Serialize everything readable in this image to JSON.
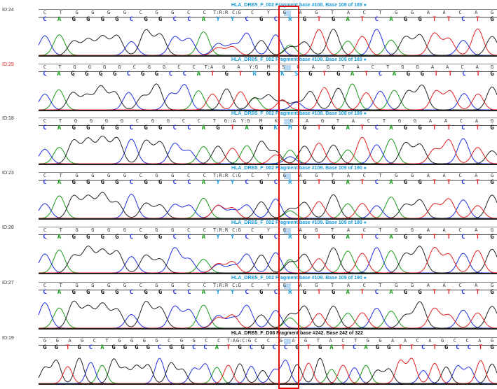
{
  "base_colors": {
    "A": "#1a9a1a",
    "C": "#2030e0",
    "G": "#111111",
    "T": "#e02020",
    "ambiguous": "#20a0e0"
  },
  "highlight_color": "#e01010",
  "tracks": [
    {
      "id": "ID:24",
      "id_color": "#333333",
      "header": "HLA_DRB5_F_002 Fragment base #108. Base 108 of 189 ●",
      "header_color": "#1a9ad8",
      "top": [
        "C",
        "T",
        "G",
        "G",
        "G",
        "G",
        "C",
        "G",
        "G",
        "C",
        "C",
        "T:R:R",
        "C:G",
        "C",
        "Y",
        "G",
        "A",
        "G",
        "T",
        "A",
        "C",
        "T",
        "G",
        "G",
        "A",
        "A",
        "C",
        "A",
        "G"
      ],
      "bottom": [
        "C",
        "A",
        "G",
        "G",
        "G",
        "G",
        "C",
        "G",
        "G",
        "C",
        "C",
        "A",
        "Y",
        "Y",
        "C",
        "G",
        "C",
        "R",
        "G",
        "T",
        "G",
        "A",
        "T",
        "C",
        "A",
        "G",
        "G",
        "T",
        "T",
        "C",
        "T",
        "G"
      ]
    },
    {
      "id": "ID:29",
      "id_color": "#e02020",
      "header": "HLA_DRB5_F_002 Fragment base #109. Base 109 of 183 ●",
      "header_color": "#1a9ad8",
      "top": [
        "C",
        "T",
        "G",
        "G",
        "G",
        "G",
        "C",
        "G",
        "G",
        "C",
        "C",
        "T:A",
        "G",
        "A",
        "Y:G",
        "M",
        "S",
        "G",
        "A",
        "G",
        "T",
        "A",
        "C",
        "T",
        "G",
        "G",
        "A",
        "A",
        "C",
        "A",
        "G"
      ],
      "bottom": [
        "C",
        "A",
        "G",
        "G",
        "G",
        "G",
        "C",
        "G",
        "G",
        "C",
        "C",
        "A",
        "T",
        "G",
        "T",
        "R",
        "G",
        "K",
        "S",
        "G",
        "T",
        "G",
        "A",
        "T",
        "C",
        "A",
        "G",
        "G",
        "T",
        "T",
        "C",
        "T",
        "G"
      ]
    },
    {
      "id": "ID:18",
      "id_color": "#333333",
      "header": "HLA_DRB5_F_002 Fragment base #108. Base 108 of 189 ●",
      "header_color": "#1a9ad8",
      "top": [
        "C",
        "T",
        "G",
        "G",
        "G",
        "G",
        "C",
        "G",
        "G",
        "C",
        "C",
        "T",
        "G::A",
        "Y:G",
        "M",
        "K",
        "G",
        "A",
        "G",
        "T",
        "A",
        "C",
        "T",
        "G",
        "G",
        "A",
        "A",
        "C",
        "A",
        "G"
      ],
      "bottom": [
        "C",
        "A",
        "G",
        "G",
        "G",
        "G",
        "C",
        "G",
        "G",
        "C",
        "C",
        "A",
        "G",
        "T",
        "A",
        "G",
        "K",
        "M",
        "G",
        "T",
        "G",
        "A",
        "T",
        "C",
        "A",
        "G",
        "G",
        "T",
        "T",
        "C",
        "T",
        "G"
      ]
    },
    {
      "id": "ID:23",
      "id_color": "#333333",
      "header": "HLA_DRB5_F_002 Fragment base #109. Base 109 of 190 ●",
      "header_color": "#1a9ad8",
      "top": [
        "C",
        "T",
        "G",
        "G",
        "G",
        "G",
        "C",
        "G",
        "G",
        "C",
        "C",
        "T:R:R",
        "C:G",
        "C",
        "Y",
        "G",
        "A",
        "G",
        "T",
        "A",
        "C",
        "T",
        "G",
        "G",
        "A",
        "A",
        "C",
        "A",
        "G"
      ],
      "bottom": [
        "C",
        "A",
        "G",
        "G",
        "G",
        "G",
        "C",
        "G",
        "G",
        "C",
        "C",
        "A",
        "Y",
        "Y",
        "C",
        "G",
        "C",
        "R",
        "G",
        "T",
        "G",
        "A",
        "T",
        "C",
        "A",
        "G",
        "G",
        "T",
        "T",
        "C",
        "T",
        "G"
      ]
    },
    {
      "id": "ID:28",
      "id_color": "#333333",
      "header": "HLA_DRB5_F_002 Fragment base #109. Base 109 of 190 ●",
      "header_color": "#1a9ad8",
      "top": [
        "C",
        "T",
        "G",
        "G",
        "G",
        "G",
        "C",
        "G",
        "G",
        "C",
        "C",
        "T:R:R",
        "C:G",
        "C",
        "Y",
        "G",
        "A",
        "G",
        "T",
        "A",
        "C",
        "T",
        "G",
        "G",
        "A",
        "A",
        "C",
        "A",
        "G"
      ],
      "bottom": [
        "C",
        "A",
        "G",
        "G",
        "G",
        "G",
        "C",
        "G",
        "G",
        "C",
        "C",
        "A",
        "Y",
        "Y",
        "C",
        "G",
        "C",
        "R",
        "G",
        "T",
        "G",
        "A",
        "T",
        "C",
        "A",
        "G",
        "G",
        "T",
        "T",
        "C",
        "T",
        "G"
      ]
    },
    {
      "id": "ID:27",
      "id_color": "#333333",
      "header": "HLA_DRB5_F_002 Fragment base #109. Base 109 of 190 ●",
      "header_color": "#1a9ad8",
      "top": [
        "C",
        "T",
        "G",
        "G",
        "G",
        "G",
        "C",
        "G",
        "G",
        "C",
        "C",
        "T:R:R",
        "C:G",
        "C",
        "Y",
        "G",
        "A",
        "G",
        "T",
        "A",
        "C",
        "T",
        "G",
        "G",
        "A",
        "A",
        "C",
        "A",
        "G"
      ],
      "bottom": [
        "C",
        "A",
        "G",
        "G",
        "G",
        "G",
        "C",
        "G",
        "G",
        "C",
        "C",
        "A",
        "Y",
        "Y",
        "C",
        "G",
        "C",
        "R",
        "G",
        "T",
        "G",
        "A",
        "T",
        "C",
        "A",
        "G",
        "G",
        "T",
        "T",
        "C",
        "T",
        "G"
      ]
    },
    {
      "id": "ID:19",
      "id_color": "#333333",
      "header": "HLA_DRB5_F_D08 Fragment base #242. Base 242 of 322",
      "header_color": "#111111",
      "top": [
        "G",
        "G",
        "A",
        "G",
        "C",
        "T",
        "G",
        "G",
        "G",
        "G",
        "C",
        "G",
        "G",
        "C",
        "C",
        "T:A",
        "G:C:G",
        "C",
        "C",
        "G",
        "A",
        "G",
        "T",
        "A",
        "C",
        "T",
        "G",
        "G",
        "A",
        "A",
        "C",
        "A",
        "G",
        "C",
        "C",
        "A",
        "G"
      ],
      "bottom": [
        "G",
        "G",
        "T",
        "G",
        "C",
        "A",
        "G",
        "G",
        "G",
        "G",
        "C",
        "G",
        "G",
        "C",
        "C",
        "A",
        "T",
        "G",
        "C",
        "G",
        "C",
        "C",
        "G",
        "T",
        "G",
        "A",
        "T",
        "C",
        "A",
        "G",
        "G",
        "T",
        "T",
        "C",
        "T",
        "G",
        "C",
        "C",
        "T",
        "G"
      ]
    }
  ]
}
